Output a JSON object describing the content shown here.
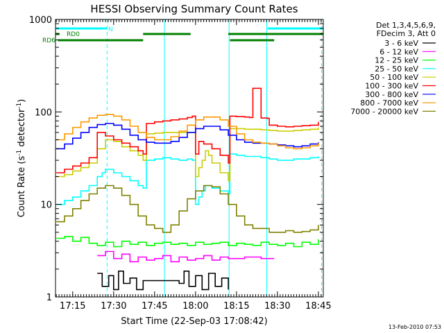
{
  "chart_data": {
    "type": "line",
    "title": "HESSI Observing Summary Count Rates",
    "xlabel": "Start Time (22-Sep-03 17:08:42)",
    "ylabel_base": "Count Rate (s",
    "ylabel_sup1": "-1",
    "ylabel_mid": " detector",
    "ylabel_sup2": "-1",
    "ylabel_end": ")",
    "yscale": "log",
    "xlim": [
      17.145,
      18.78
    ],
    "ylim": [
      1,
      1000
    ],
    "xticks": [
      {
        "value": 17.25,
        "label": "17:15"
      },
      {
        "value": 17.5,
        "label": "17:30"
      },
      {
        "value": 17.75,
        "label": "17:45"
      },
      {
        "value": 18.0,
        "label": "18:00"
      },
      {
        "value": 18.25,
        "label": "18:15"
      },
      {
        "value": 18.5,
        "label": "18:30"
      },
      {
        "value": 18.75,
        "label": "18:45"
      }
    ],
    "yticks": [
      {
        "value": 1,
        "label": "1"
      },
      {
        "value": 10,
        "label": "10"
      },
      {
        "value": 100,
        "label": "100"
      },
      {
        "value": 1000,
        "label": "1000"
      }
    ],
    "legend_header": [
      "Det 1,3,4,5,6,9,",
      "FDecim 3, Att 0"
    ],
    "legend_position": "right",
    "vertical_markers": [
      {
        "x": 17.145,
        "style": "solid"
      },
      {
        "x": 17.46,
        "style": "dashed"
      },
      {
        "x": 17.81,
        "style": "solid"
      },
      {
        "x": 18.205,
        "style": "solid"
      },
      {
        "x": 18.435,
        "style": "solid"
      },
      {
        "x": 18.77,
        "style": "dashed"
      }
    ],
    "status_bars": [
      {
        "label": "N",
        "level": 1,
        "color": "#00ffff",
        "x": [
          [
            17.15,
            17.46
          ],
          [
            18.44,
            18.78
          ]
        ]
      },
      {
        "label": "RD0",
        "level": 2,
        "color": "#008000",
        "x": [
          [
            17.14,
            17.17
          ],
          [
            17.68,
            17.97
          ],
          [
            18.2,
            18.78
          ]
        ]
      },
      {
        "label": "RD6",
        "level": 3,
        "color": "#008000",
        "x": [
          [
            17.16,
            17.68
          ],
          [
            18.21,
            18.48
          ]
        ]
      }
    ],
    "series": [
      {
        "name": "3 - 6 keV",
        "color": "#000000",
        "x": [
          17.4,
          17.43,
          17.47,
          17.5,
          17.53,
          17.56,
          17.6,
          17.64,
          17.68,
          17.9,
          17.93,
          17.96,
          18.0,
          18.04,
          18.08,
          18.12,
          18.16,
          18.2
        ],
        "y": [
          1.8,
          1.3,
          1.7,
          1.2,
          1.9,
          1.4,
          1.6,
          1.2,
          1.5,
          1.4,
          1.9,
          1.3,
          1.7,
          1.2,
          1.8,
          1.3,
          1.6,
          1.2
        ]
      },
      {
        "name": "6 - 12 keV",
        "color": "#ff00ff",
        "x": [
          17.4,
          17.45,
          17.5,
          17.55,
          17.6,
          17.65,
          17.7,
          17.75,
          17.8,
          17.85,
          17.9,
          17.95,
          18.0,
          18.05,
          18.1,
          18.15,
          18.2,
          18.3,
          18.4,
          18.48
        ],
        "y": [
          2.8,
          3.1,
          2.6,
          2.9,
          2.4,
          2.7,
          2.5,
          2.6,
          2.8,
          2.4,
          2.7,
          2.5,
          2.6,
          2.8,
          2.5,
          2.7,
          2.6,
          2.7,
          2.6,
          2.6
        ]
      },
      {
        "name": "12 - 25 keV",
        "color": "#00ff00",
        "x": [
          17.15,
          17.2,
          17.25,
          17.3,
          17.35,
          17.4,
          17.45,
          17.5,
          17.55,
          17.6,
          17.65,
          17.7,
          17.75,
          17.8,
          17.85,
          17.9,
          17.95,
          18.0,
          18.05,
          18.1,
          18.15,
          18.2,
          18.25,
          18.3,
          18.35,
          18.4,
          18.45,
          18.5,
          18.55,
          18.6,
          18.65,
          18.7,
          18.75
        ],
        "y": [
          4.3,
          4.5,
          4.0,
          4.4,
          3.8,
          3.6,
          3.9,
          3.5,
          4.0,
          3.7,
          3.9,
          3.6,
          3.8,
          3.9,
          3.7,
          3.8,
          3.6,
          3.9,
          3.7,
          3.8,
          3.9,
          3.6,
          3.8,
          3.7,
          3.6,
          3.9,
          3.7,
          3.6,
          3.8,
          3.5,
          3.9,
          3.7,
          4.2
        ]
      },
      {
        "name": "25 - 50 keV",
        "color": "#00ffff",
        "x": [
          17.15,
          17.2,
          17.25,
          17.3,
          17.35,
          17.4,
          17.43,
          17.45,
          17.5,
          17.55,
          17.6,
          17.65,
          17.68,
          17.7,
          17.75,
          17.8,
          17.85,
          17.9,
          17.95,
          17.98,
          18.0,
          18.02,
          18.04,
          18.06,
          18.1,
          18.15,
          18.2,
          18.21,
          18.25,
          18.3,
          18.35,
          18.4,
          18.45,
          18.5,
          18.55,
          18.6,
          18.65,
          18.7,
          18.75
        ],
        "y": [
          10,
          11,
          12,
          14,
          16,
          20,
          22,
          24,
          22,
          20,
          18,
          16,
          15,
          30,
          31,
          32,
          31,
          30,
          31,
          30,
          10,
          12,
          14,
          16,
          15,
          14,
          13,
          35,
          34,
          33,
          33,
          32,
          31,
          30,
          30,
          31,
          31,
          32,
          33
        ]
      },
      {
        "name": "50 - 100 keV",
        "color": "#cccc00",
        "x": [
          17.15,
          17.2,
          17.25,
          17.3,
          17.35,
          17.4,
          17.45,
          17.5,
          17.55,
          17.6,
          17.65,
          17.68,
          17.7,
          17.75,
          17.8,
          17.85,
          17.9,
          17.95,
          17.98,
          18.0,
          18.02,
          18.04,
          18.06,
          18.08,
          18.1,
          18.15,
          18.2,
          18.21,
          18.25,
          18.3,
          18.35,
          18.4,
          18.45,
          18.5,
          18.55,
          18.6,
          18.65,
          18.7,
          18.75
        ],
        "y": [
          20,
          21,
          23,
          25,
          28,
          40,
          50,
          48,
          42,
          38,
          34,
          30,
          58,
          59,
          60,
          60,
          60,
          60,
          60,
          20,
          25,
          30,
          38,
          34,
          28,
          22,
          18,
          66,
          66,
          65,
          65,
          64,
          63,
          62,
          62,
          63,
          64,
          65,
          68
        ]
      },
      {
        "name": "100 - 300 keV",
        "color": "#ff0000",
        "x": [
          17.15,
          17.2,
          17.25,
          17.3,
          17.35,
          17.4,
          17.45,
          17.5,
          17.55,
          17.6,
          17.65,
          17.68,
          17.7,
          17.75,
          17.8,
          17.85,
          17.9,
          17.95,
          17.98,
          18.0,
          18.02,
          18.05,
          18.1,
          18.15,
          18.2,
          18.21,
          18.25,
          18.3,
          18.33,
          18.35,
          18.4,
          18.44,
          18.45,
          18.5,
          18.55,
          18.6,
          18.65,
          18.7,
          18.75
        ],
        "y": [
          22,
          24,
          26,
          28,
          32,
          60,
          55,
          50,
          46,
          42,
          38,
          35,
          75,
          78,
          80,
          82,
          84,
          87,
          90,
          35,
          48,
          45,
          40,
          34,
          28,
          90,
          89,
          88,
          87,
          180,
          86,
          85,
          72,
          70,
          69,
          70,
          71,
          72,
          78
        ]
      },
      {
        "name": "300 - 800 keV",
        "color": "#0000ff",
        "x": [
          17.15,
          17.2,
          17.25,
          17.3,
          17.35,
          17.4,
          17.45,
          17.5,
          17.55,
          17.6,
          17.65,
          17.7,
          17.75,
          17.8,
          17.85,
          17.9,
          17.95,
          18.0,
          18.05,
          18.1,
          18.15,
          18.2,
          18.25,
          18.3,
          18.35,
          18.4,
          18.45,
          18.5,
          18.55,
          18.6,
          18.65,
          18.7,
          18.75
        ],
        "y": [
          40,
          45,
          52,
          60,
          68,
          73,
          75,
          72,
          65,
          56,
          50,
          47,
          46,
          46,
          48,
          53,
          60,
          66,
          70,
          70,
          64,
          56,
          50,
          47,
          46,
          46,
          45,
          44,
          43,
          42,
          43,
          45,
          47
        ]
      },
      {
        "name": "800 - 7000 keV",
        "color": "#ff9900",
        "x": [
          17.15,
          17.2,
          17.25,
          17.3,
          17.35,
          17.4,
          17.45,
          17.5,
          17.55,
          17.6,
          17.65,
          17.7,
          17.75,
          17.8,
          17.85,
          17.9,
          17.95,
          18.0,
          18.05,
          18.1,
          18.15,
          18.2,
          18.25,
          18.3,
          18.35,
          18.4,
          18.45,
          18.5,
          18.55,
          18.6,
          18.65,
          18.7,
          18.75
        ],
        "y": [
          50,
          58,
          68,
          78,
          86,
          92,
          94,
          90,
          82,
          70,
          60,
          53,
          50,
          50,
          54,
          62,
          72,
          82,
          88,
          88,
          82,
          70,
          58,
          50,
          47,
          46,
          45,
          43,
          41,
          40,
          41,
          43,
          46
        ]
      },
      {
        "name": "7000 - 20000 keV",
        "color": "#808000",
        "x": [
          17.15,
          17.2,
          17.25,
          17.3,
          17.35,
          17.4,
          17.45,
          17.5,
          17.55,
          17.6,
          17.65,
          17.7,
          17.75,
          17.8,
          17.85,
          17.9,
          17.95,
          18.0,
          18.05,
          18.1,
          18.15,
          18.2,
          18.25,
          18.3,
          18.35,
          18.4,
          18.45,
          18.5,
          18.55,
          18.6,
          18.65,
          18.7,
          18.75
        ],
        "y": [
          6.5,
          7.5,
          9,
          11,
          13,
          15,
          16,
          15,
          12.5,
          10,
          7.5,
          6,
          5.5,
          5,
          6,
          8.5,
          11.5,
          14,
          16,
          15.5,
          13,
          10,
          7.5,
          6,
          5.5,
          5.5,
          5,
          5,
          5.2,
          5,
          5.1,
          5.3,
          6
        ]
      }
    ]
  },
  "footer": {
    "date": "13-Feb-2010 07:53"
  }
}
